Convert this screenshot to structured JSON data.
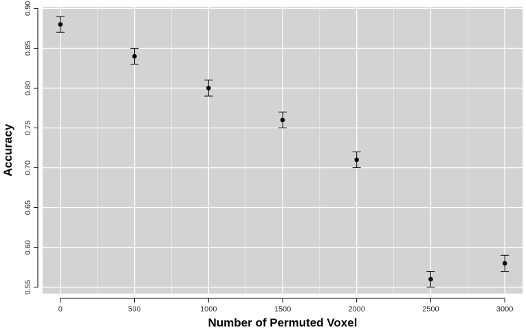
{
  "chart_data": {
    "type": "scatter",
    "title": "",
    "xlabel": "Number of Permuted Voxel",
    "ylabel": "Accuracy",
    "x": [
      0,
      500,
      1000,
      1500,
      2000,
      2500,
      3000
    ],
    "y": [
      0.88,
      0.84,
      0.8,
      0.76,
      0.71,
      0.56,
      0.58
    ],
    "error": [
      0.01,
      0.01,
      0.01,
      0.01,
      0.01,
      0.01,
      0.01
    ],
    "xlim": [
      -120,
      3120
    ],
    "ylim": [
      0.542,
      0.902
    ],
    "x_ticks": [
      0,
      500,
      1000,
      1500,
      2000,
      2500,
      3000
    ],
    "y_ticks": [
      0.55,
      0.6,
      0.65,
      0.7,
      0.75,
      0.8,
      0.85,
      0.9
    ],
    "x_tick_labels": [
      "0",
      "500",
      "1000",
      "1500",
      "2000",
      "2500",
      "3000"
    ],
    "y_tick_labels": [
      "0.55",
      "0.60",
      "0.65",
      "0.70",
      "0.75",
      "0.80",
      "0.85",
      "0.90"
    ],
    "grid": true,
    "legend": "none",
    "colors": {
      "panel_background": "#d3d3d3",
      "grid": "#ffffff",
      "point": "#000000",
      "axis": "#000000"
    }
  }
}
